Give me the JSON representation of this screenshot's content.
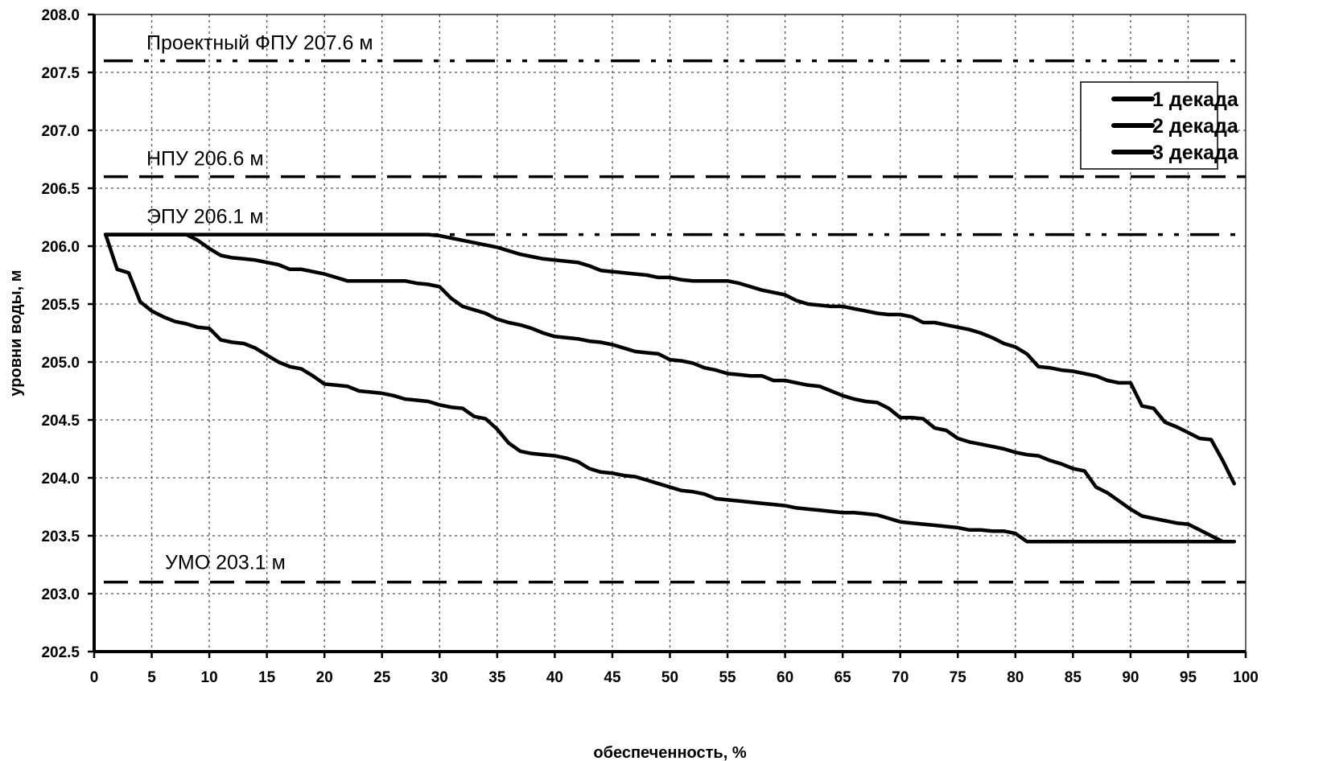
{
  "chart_data": {
    "type": "line",
    "title": "",
    "xlabel": "обеспеченность, %",
    "ylabel": "уровни воды, м",
    "xlim": [
      0,
      100
    ],
    "ylim": [
      202.5,
      208.0
    ],
    "x_ticks": [
      "0",
      "5",
      "10",
      "15",
      "20",
      "25",
      "30",
      "35",
      "40",
      "45",
      "50",
      "55",
      "60",
      "65",
      "70",
      "75",
      "80",
      "85",
      "90",
      "95",
      "100"
    ],
    "y_ticks": [
      "202.5",
      "203.0",
      "203.5",
      "204.0",
      "204.5",
      "205.0",
      "205.5",
      "206.0",
      "206.5",
      "207.0",
      "207.5",
      "208.0"
    ],
    "grid": true,
    "legend_position": "top-right",
    "reference_lines": [
      {
        "label": "Проектный ФПУ 207.6 м",
        "value": 207.6,
        "style": "dash-dot-dot"
      },
      {
        "label": "НПУ 206.6 м",
        "value": 206.6,
        "style": "dashed"
      },
      {
        "label": "ЭПУ 206.1 м",
        "value": 206.1,
        "style": "dash-dot-dot"
      },
      {
        "label": "УМО 203.1 м",
        "value": 203.1,
        "style": "dashed"
      }
    ],
    "series": [
      {
        "name": "1 декада",
        "x": [
          1,
          2,
          3,
          4,
          5,
          6,
          7,
          8,
          9,
          10,
          11,
          12,
          13,
          14,
          15,
          16,
          17,
          18,
          19,
          20,
          21,
          22,
          23,
          24,
          25,
          26,
          27,
          28,
          29,
          30,
          31,
          32,
          33,
          34,
          35,
          36,
          37,
          38,
          39,
          40,
          41,
          42,
          43,
          44,
          45,
          46,
          47,
          48,
          49,
          50,
          51,
          52,
          53,
          54,
          55,
          56,
          57,
          58,
          59,
          60,
          61,
          62,
          63,
          64,
          65,
          66,
          67,
          68,
          69,
          70,
          71,
          72,
          73,
          74,
          75,
          76,
          77,
          78,
          79,
          80,
          81,
          82,
          83,
          84,
          85,
          86,
          87,
          88,
          89,
          90,
          91,
          92,
          93,
          94,
          95,
          96,
          97,
          98,
          99
        ],
        "values": [
          206.1,
          205.8,
          205.77,
          205.52,
          205.44,
          205.39,
          205.35,
          205.33,
          205.3,
          205.29,
          205.19,
          205.17,
          205.16,
          205.12,
          205.06,
          205.0,
          204.96,
          204.94,
          204.88,
          204.81,
          204.8,
          204.79,
          204.75,
          204.74,
          204.73,
          204.71,
          204.68,
          204.67,
          204.66,
          204.63,
          204.61,
          204.6,
          204.53,
          204.51,
          204.42,
          204.3,
          204.23,
          204.21,
          204.2,
          204.19,
          204.17,
          204.14,
          204.08,
          204.05,
          204.04,
          204.02,
          204.01,
          203.98,
          203.95,
          203.92,
          203.89,
          203.88,
          203.86,
          203.82,
          203.81,
          203.8,
          203.79,
          203.78,
          203.77,
          203.76,
          203.74,
          203.73,
          203.72,
          203.71,
          203.7,
          203.7,
          203.69,
          203.68,
          203.65,
          203.62,
          203.61,
          203.6,
          203.59,
          203.58,
          203.57,
          203.55,
          203.55,
          203.54,
          203.54,
          203.52,
          203.45,
          203.45,
          203.45,
          203.45,
          203.45,
          203.45,
          203.45,
          203.45,
          203.45,
          203.45,
          203.45,
          203.45,
          203.45,
          203.45,
          203.45,
          203.45,
          203.45,
          203.45,
          203.45
        ]
      },
      {
        "name": "2 декада",
        "x": [
          1,
          2,
          3,
          4,
          5,
          6,
          7,
          8,
          9,
          10,
          11,
          12,
          13,
          14,
          15,
          16,
          17,
          18,
          19,
          20,
          21,
          22,
          23,
          24,
          25,
          26,
          27,
          28,
          29,
          30,
          31,
          32,
          33,
          34,
          35,
          36,
          37,
          38,
          39,
          40,
          41,
          42,
          43,
          44,
          45,
          46,
          47,
          48,
          49,
          50,
          51,
          52,
          53,
          54,
          55,
          56,
          57,
          58,
          59,
          60,
          61,
          62,
          63,
          64,
          65,
          66,
          67,
          68,
          69,
          70,
          71,
          72,
          73,
          74,
          75,
          76,
          77,
          78,
          79,
          80,
          81,
          82,
          83,
          84,
          85,
          86,
          87,
          88,
          89,
          90,
          91,
          92,
          93,
          94,
          95,
          96,
          97,
          98,
          99
        ],
        "values": [
          206.1,
          206.1,
          206.1,
          206.1,
          206.1,
          206.1,
          206.1,
          206.1,
          206.05,
          205.98,
          205.92,
          205.9,
          205.89,
          205.88,
          205.86,
          205.84,
          205.8,
          205.8,
          205.78,
          205.76,
          205.73,
          205.7,
          205.7,
          205.7,
          205.7,
          205.7,
          205.7,
          205.68,
          205.67,
          205.65,
          205.55,
          205.48,
          205.45,
          205.42,
          205.37,
          205.34,
          205.32,
          205.29,
          205.25,
          205.22,
          205.21,
          205.2,
          205.18,
          205.17,
          205.15,
          205.12,
          205.09,
          205.08,
          205.07,
          205.02,
          205.01,
          204.99,
          204.95,
          204.93,
          204.9,
          204.89,
          204.88,
          204.88,
          204.84,
          204.84,
          204.82,
          204.8,
          204.79,
          204.75,
          204.71,
          204.68,
          204.66,
          204.65,
          204.6,
          204.52,
          204.52,
          204.51,
          204.43,
          204.41,
          204.34,
          204.31,
          204.29,
          204.27,
          204.25,
          204.22,
          204.2,
          204.19,
          204.15,
          204.12,
          204.08,
          204.06,
          203.92,
          203.87,
          203.8,
          203.73,
          203.67,
          203.65,
          203.63,
          203.61,
          203.6,
          203.55,
          203.5,
          203.45,
          203.45
        ]
      },
      {
        "name": "3 декада",
        "x": [
          1,
          2,
          3,
          4,
          5,
          6,
          7,
          8,
          9,
          10,
          11,
          12,
          13,
          14,
          15,
          16,
          17,
          18,
          19,
          20,
          21,
          22,
          23,
          24,
          25,
          26,
          27,
          28,
          29,
          30,
          31,
          32,
          33,
          34,
          35,
          36,
          37,
          38,
          39,
          40,
          41,
          42,
          43,
          44,
          45,
          46,
          47,
          48,
          49,
          50,
          51,
          52,
          53,
          54,
          55,
          56,
          57,
          58,
          59,
          60,
          61,
          62,
          63,
          64,
          65,
          66,
          67,
          68,
          69,
          70,
          71,
          72,
          73,
          74,
          75,
          76,
          77,
          78,
          79,
          80,
          81,
          82,
          83,
          84,
          85,
          86,
          87,
          88,
          89,
          90,
          91,
          92,
          93,
          94,
          95,
          96,
          97,
          98,
          99
        ],
        "values": [
          206.1,
          206.1,
          206.1,
          206.1,
          206.1,
          206.1,
          206.1,
          206.1,
          206.1,
          206.1,
          206.1,
          206.1,
          206.1,
          206.1,
          206.1,
          206.1,
          206.1,
          206.1,
          206.1,
          206.1,
          206.1,
          206.1,
          206.1,
          206.1,
          206.1,
          206.1,
          206.1,
          206.1,
          206.1,
          206.09,
          206.07,
          206.05,
          206.03,
          206.01,
          205.99,
          205.96,
          205.93,
          205.91,
          205.89,
          205.88,
          205.87,
          205.86,
          205.83,
          205.79,
          205.78,
          205.77,
          205.76,
          205.75,
          205.73,
          205.73,
          205.71,
          205.7,
          205.7,
          205.7,
          205.7,
          205.68,
          205.65,
          205.62,
          205.6,
          205.58,
          205.53,
          205.5,
          205.49,
          205.48,
          205.48,
          205.46,
          205.44,
          205.42,
          205.41,
          205.41,
          205.39,
          205.34,
          205.34,
          205.32,
          205.3,
          205.28,
          205.25,
          205.21,
          205.16,
          205.13,
          205.07,
          204.96,
          204.95,
          204.93,
          204.92,
          204.9,
          204.88,
          204.84,
          204.82,
          204.82,
          204.62,
          204.6,
          204.48,
          204.44,
          204.39,
          204.34,
          204.33,
          204.15,
          203.95
        ]
      }
    ]
  }
}
